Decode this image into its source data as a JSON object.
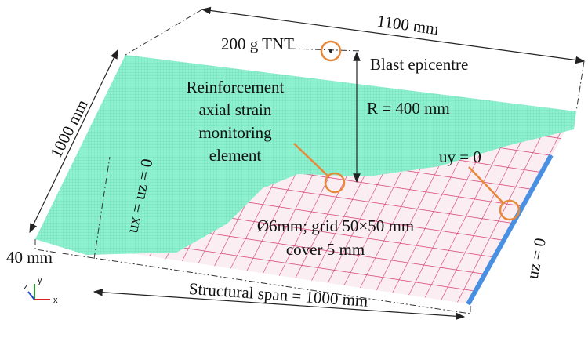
{
  "labels": {
    "width_dim": "1100 mm",
    "charge": "200 g TNT",
    "epicentre": "Blast epicentre",
    "length_dim": "1000 mm",
    "monitor": [
      "Reinforcement",
      "axial strain",
      "monitoring",
      "element"
    ],
    "standoff": "R = 400 mm",
    "uy": "uy = 0",
    "uxuz": "ux = uz = 0",
    "rebar": "Ø6mm; grid 50×50 mm",
    "cover": "cover 5 mm",
    "uz": "uz = 0",
    "thickness": "40 mm",
    "span": "Structural span = 1000 mm",
    "axes": [
      "y",
      "z",
      "x"
    ]
  }
}
